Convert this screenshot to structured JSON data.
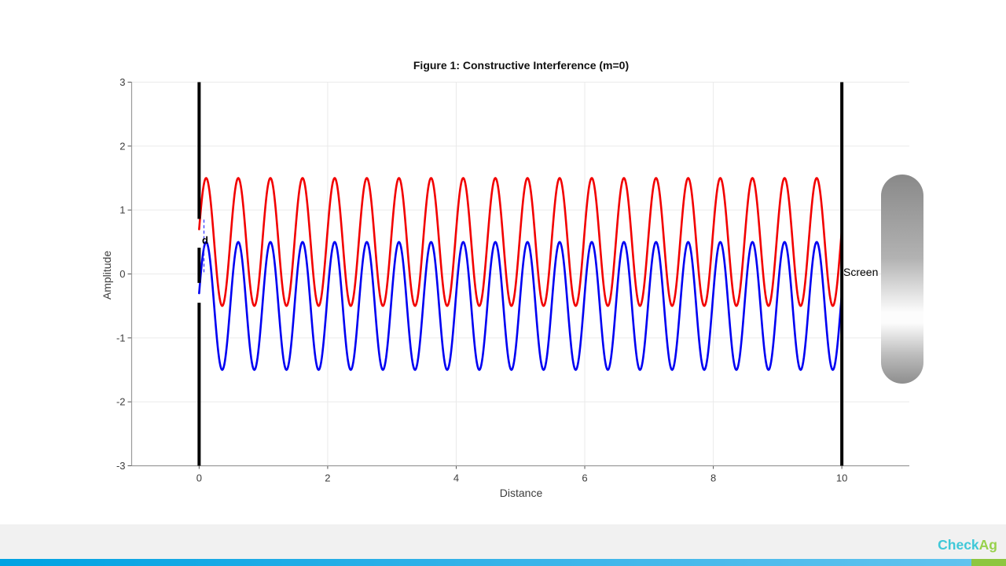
{
  "chart_data": {
    "type": "line",
    "title": "Figure 1: Constructive Interference (m=0)",
    "xlabel": "Distance",
    "ylabel": "Amplitude",
    "screen_label": "Screen",
    "xlim": [
      -1.05,
      11.05
    ],
    "ylim": [
      -3,
      3
    ],
    "xticks": [
      "0",
      "2",
      "4",
      "6",
      "8",
      "10"
    ],
    "xtick_values": [
      0,
      2,
      4,
      6,
      8,
      10
    ],
    "yticks": [
      "3",
      "2",
      "1",
      "0",
      "-1",
      "-2",
      "-3"
    ],
    "ytick_values": [
      3,
      2,
      1,
      0,
      -1,
      -2,
      -3
    ],
    "grid": true,
    "grid_color": "#eaeaea",
    "axis_color": "#9a9a9a",
    "tick_color": "#555555",
    "legend": "none",
    "series": [
      {
        "name": "upper-wave",
        "color": "#f20000",
        "waveform": "sine",
        "center": 0.5,
        "amplitude": 1.0,
        "wavelength": 0.5,
        "phase_rad": 0.2,
        "x_start": 0.0,
        "x_end": 10.0
      },
      {
        "name": "lower-wave",
        "color": "#0000f2",
        "waveform": "sine",
        "center": -0.5,
        "amplitude": 1.0,
        "wavelength": 0.5,
        "phase_rad": 0.2,
        "x_start": 0.0,
        "x_end": 10.0
      }
    ],
    "barrier": {
      "x": 0,
      "color": "#000000",
      "segments_y": [
        [
          3,
          0.86
        ],
        [
          0.41,
          -0.14
        ],
        [
          -0.45,
          -3
        ]
      ]
    },
    "screen_line": {
      "x": 10,
      "color": "#000000",
      "y_from": 3,
      "y_to": -3
    },
    "slit_separation_marker": {
      "label": "d",
      "x": 0.075,
      "y_from": 0.85,
      "y_to": 0.02,
      "color": "#3a3aff",
      "style": "dashed"
    },
    "intensity_bar": {
      "top_color": "#898989",
      "upper_mid_color": "#b2b2b2",
      "center_color": "#fcfcfc",
      "lower_mid_color": "#bdbdbd",
      "bottom_color": "#8e8e8e"
    }
  },
  "watermark": {
    "part1": "Check",
    "part2": "Ag",
    "part1_color": "#3fc8d8",
    "part2_color": "#97d14b"
  },
  "footer": {
    "band_color": "#f1f1f1",
    "bar_colors": {
      "left": "#00a2e2",
      "mid": "#3ab4e9",
      "right": "#62c3ee"
    },
    "accent_color": "#8dc63f"
  }
}
